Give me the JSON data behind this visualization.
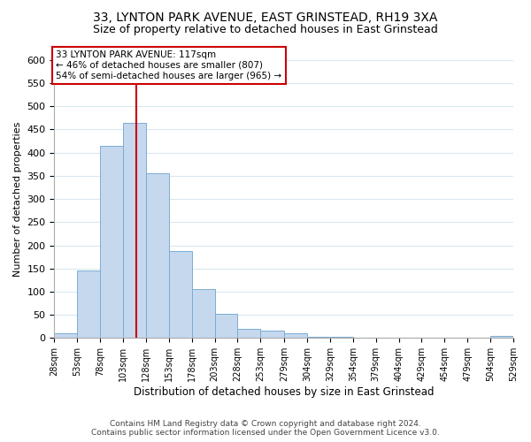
{
  "title": "33, LYNTON PARK AVENUE, EAST GRINSTEAD, RH19 3XA",
  "subtitle": "Size of property relative to detached houses in East Grinstead",
  "xlabel": "Distribution of detached houses by size in East Grinstead",
  "ylabel": "Number of detached properties",
  "bar_color": "#c5d8ee",
  "bar_edge_color": "#7aadd4",
  "vline_color": "#cc0000",
  "vline_x": 117,
  "bin_edges": [
    28,
    53,
    78,
    103,
    128,
    153,
    178,
    203,
    228,
    253,
    279,
    304,
    329,
    354,
    379,
    404,
    429,
    454,
    479,
    504,
    529
  ],
  "bar_heights": [
    10,
    145,
    415,
    465,
    355,
    188,
    105,
    53,
    20,
    15,
    10,
    3,
    2,
    1,
    0,
    0,
    0,
    0,
    0,
    5
  ],
  "ylim": [
    0,
    600
  ],
  "yticks": [
    0,
    50,
    100,
    150,
    200,
    250,
    300,
    350,
    400,
    450,
    500,
    550,
    600
  ],
  "tick_labels": [
    "28sqm",
    "53sqm",
    "78sqm",
    "103sqm",
    "128sqm",
    "153sqm",
    "178sqm",
    "203sqm",
    "228sqm",
    "253sqm",
    "279sqm",
    "304sqm",
    "329sqm",
    "354sqm",
    "379sqm",
    "404sqm",
    "429sqm",
    "454sqm",
    "479sqm",
    "504sqm",
    "529sqm"
  ],
  "annotation_title": "33 LYNTON PARK AVENUE: 117sqm",
  "annotation_line1": "← 46% of detached houses are smaller (807)",
  "annotation_line2": "54% of semi-detached houses are larger (965) →",
  "annotation_box_color": "#ffffff",
  "annotation_box_edge_color": "#cc0000",
  "footer_line1": "Contains HM Land Registry data © Crown copyright and database right 2024.",
  "footer_line2": "Contains public sector information licensed under the Open Government Licence v3.0.",
  "grid_color": "#d8e8f0",
  "background_color": "#ffffff",
  "title_fontsize": 10,
  "subtitle_fontsize": 9
}
